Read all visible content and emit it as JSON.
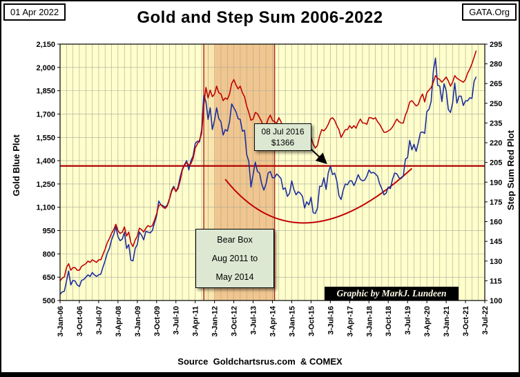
{
  "header": {
    "date_box": "01 Apr 2022",
    "org_box": "GATA.Org",
    "title": "Gold and Step Sum 2006-2022"
  },
  "footer": {
    "source": "Source  Goldchartsrus.com  & COMEX"
  },
  "annotations": {
    "callout": {
      "line1": "08 Jul 2016",
      "line2": "$1366"
    },
    "bear_box": {
      "line1": "Bear Box",
      "line2": "Aug 2011  to",
      "line3": "May 2014"
    },
    "credit": "Graphic by MarkJ. Lundeen"
  },
  "chart_data": {
    "type": "line",
    "title": "Gold and Step Sum 2006-2022",
    "x_monthly_start": "2006-01",
    "x_monthly_end": "2022-03",
    "x_axis_span_months": 198,
    "x_labels": [
      "3-Jan-06",
      "3-Oct-06",
      "3-Jul-07",
      "3-Apr-08",
      "3-Jan-09",
      "3-Oct-09",
      "3-Jul-10",
      "3-Apr-11",
      "3-Jan-12",
      "3-Oct-12",
      "3-Jul-13",
      "3-Apr-14",
      "3-Jan-15",
      "3-Oct-15",
      "3-Jul-16",
      "3-Apr-17",
      "3-Jan-18",
      "3-Oct-18",
      "3-Jul-19",
      "3-Apr-20",
      "3-Jan-21",
      "3-Oct-21",
      "3-Jul-22"
    ],
    "x_label_step_months": 9,
    "grid": true,
    "left_axis": {
      "title": "Gold        Blue Plot",
      "min": 500,
      "max": 2150,
      "tick_step": 150,
      "ticks": [
        "500",
        "650",
        "800",
        "950",
        "1,100",
        "1,250",
        "1,400",
        "1,550",
        "1,700",
        "1,850",
        "2,000",
        "2,150"
      ]
    },
    "right_axis": {
      "title": "Step Sum        Red Plot",
      "min": 100,
      "max": 295,
      "tick_step": 15,
      "ticks": [
        "100",
        "115",
        "130",
        "145",
        "160",
        "175",
        "190",
        "205",
        "220",
        "235",
        "250",
        "265",
        "280",
        "295"
      ]
    },
    "series": [
      {
        "name": "Gold (Blue Plot)",
        "axis": "left",
        "color": "#1c2d9c",
        "monthly_values": [
          540,
          555,
          560,
          625,
          690,
          600,
          630,
          625,
          600,
          590,
          630,
          635,
          650,
          665,
          655,
          680,
          665,
          655,
          665,
          670,
          715,
          755,
          805,
          835,
          890,
          925,
          975,
          910,
          885,
          895,
          940,
          835,
          860,
          760,
          755,
          835,
          860,
          940,
          920,
          890,
          945,
          940,
          935,
          950,
          1000,
          1045,
          1140,
          1115,
          1110,
          1100,
          1115,
          1155,
          1210,
          1235,
          1200,
          1230,
          1295,
          1345,
          1375,
          1400,
          1340,
          1400,
          1430,
          1510,
          1525,
          1520,
          1600,
          1820,
          1780,
          1665,
          1740,
          1600,
          1660,
          1740,
          1670,
          1650,
          1565,
          1600,
          1590,
          1650,
          1765,
          1740,
          1715,
          1670,
          1665,
          1590,
          1595,
          1440,
          1395,
          1230,
          1310,
          1390,
          1330,
          1320,
          1250,
          1210,
          1250,
          1320,
          1330,
          1290,
          1290,
          1315,
          1300,
          1285,
          1215,
          1225,
          1170,
          1190,
          1270,
          1215,
          1180,
          1200,
          1190,
          1170,
          1095,
          1135,
          1115,
          1165,
          1065,
          1060,
          1095,
          1235,
          1235,
          1290,
          1215,
          1320,
          1366,
          1310,
          1320,
          1270,
          1175,
          1150,
          1210,
          1250,
          1245,
          1270,
          1270,
          1240,
          1270,
          1310,
          1280,
          1270,
          1275,
          1300,
          1340,
          1320,
          1325,
          1315,
          1300,
          1250,
          1220,
          1180,
          1190,
          1230,
          1220,
          1280,
          1320,
          1315,
          1290,
          1285,
          1300,
          1410,
          1420,
          1530,
          1470,
          1505,
          1460,
          1515,
          1580,
          1585,
          1575,
          1715,
          1730,
          1780,
          1975,
          2060,
          1885,
          1880,
          1780,
          1895,
          1850,
          1730,
          1710,
          1770,
          1900,
          1770,
          1815,
          1815,
          1755,
          1785,
          1785,
          1805,
          1800,
          1910,
          1940
        ]
      },
      {
        "name": "Step Sum (Red Plot)",
        "axis": "right",
        "color": "#c00000",
        "monthly_values": [
          115,
          117,
          118,
          125,
          128,
          123,
          125,
          125,
          123,
          123,
          126,
          127,
          128,
          130,
          129,
          131,
          130,
          129,
          131,
          131,
          135,
          139,
          144,
          147,
          151,
          154,
          158,
          153,
          151,
          152,
          156,
          149,
          152,
          144,
          141,
          146,
          149,
          155,
          154,
          152,
          155,
          157,
          156,
          157,
          161,
          166,
          172,
          173,
          171,
          170,
          172,
          177,
          183,
          186,
          183,
          185,
          191,
          199,
          203,
          205,
          203,
          204,
          208,
          216,
          219,
          222,
          227,
          248,
          262,
          254,
          260,
          255,
          257,
          263,
          258,
          257,
          252,
          254,
          253,
          257,
          265,
          268,
          264,
          261,
          263,
          258,
          255,
          248,
          243,
          237,
          238,
          243,
          242,
          239,
          236,
          231,
          233,
          238,
          241,
          237,
          236,
          235,
          239,
          236,
          231,
          230,
          227,
          229,
          232,
          230,
          227,
          229,
          229,
          227,
          222,
          220,
          221,
          224,
          219,
          216,
          218,
          225,
          230,
          229,
          231,
          234,
          238,
          239,
          237,
          233,
          230,
          224,
          227,
          230,
          230,
          233,
          231,
          233,
          231,
          235,
          238,
          235,
          235,
          234,
          239,
          239,
          238,
          239,
          236,
          234,
          231,
          228,
          228,
          229,
          230,
          232,
          235,
          238,
          236,
          235,
          235,
          241,
          245,
          251,
          252,
          250,
          248,
          249,
          254,
          257,
          251,
          258,
          260,
          262,
          266,
          271,
          269,
          268,
          266,
          268,
          270,
          267,
          263,
          266,
          271,
          269,
          268,
          267,
          266,
          268,
          273,
          276,
          280,
          285,
          290
        ]
      }
    ],
    "reference_line": {
      "axis": "left",
      "value": 1366
    },
    "bear_box": {
      "from": "2011-08",
      "inner_from": "2012-01",
      "to": "2014-05"
    },
    "smile_curve": {
      "points_month_gold": [
        [
          77,
          1280
        ],
        [
          116,
          1000
        ],
        [
          164,
          1350
        ]
      ]
    },
    "callout_target": {
      "month": "2016-07",
      "value": 1366
    },
    "colors": {
      "plot_bg": "#ffffcc",
      "grid": "#a6a69a",
      "gold_line": "#1c2d9c",
      "step_line": "#c00000",
      "reference_line": "#b00000",
      "smile": "#c00000",
      "bear_fill": "rgba(235,150,80,0.25)",
      "bear_inner_fill": "rgba(220,120,60,0.28)",
      "bear_edge": "#b03020",
      "arrow": "#000000"
    }
  }
}
